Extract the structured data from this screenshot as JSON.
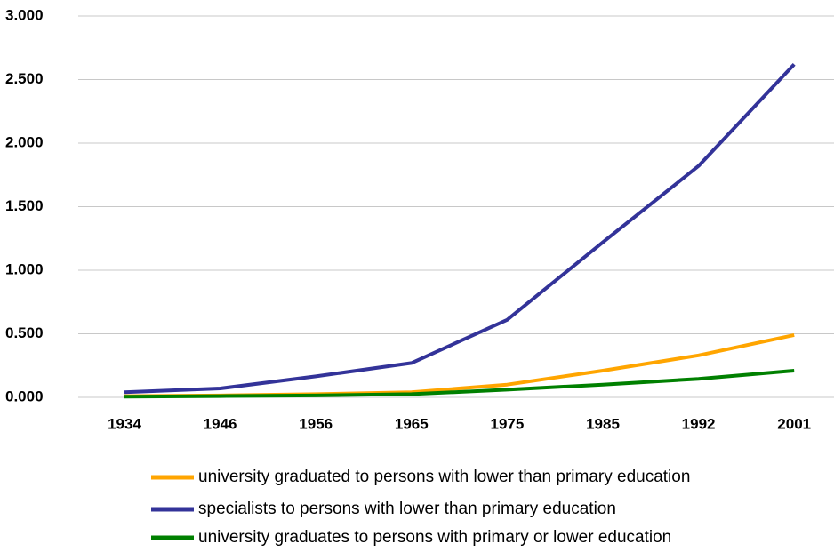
{
  "chart_data": {
    "type": "line",
    "categories": [
      "1934",
      "1946",
      "1956",
      "1965",
      "1975",
      "1985",
      "1992",
      "2001"
    ],
    "series": [
      {
        "name": "university graduated to persons with lower than primary education",
        "color": "#ffa500",
        "values": [
          0.01,
          0.015,
          0.025,
          0.04,
          0.1,
          0.21,
          0.33,
          0.49
        ]
      },
      {
        "name": "specialists to persons with lower than primary education",
        "color": "#333399",
        "values": [
          0.04,
          0.07,
          0.165,
          0.27,
          0.61,
          1.22,
          1.82,
          2.62
        ]
      },
      {
        "name": "university graduates to persons with primary or lower education",
        "color": "#008000",
        "values": [
          0.005,
          0.01,
          0.015,
          0.025,
          0.06,
          0.1,
          0.145,
          0.21
        ]
      }
    ],
    "ylim": [
      0,
      3
    ],
    "yticks": [
      {
        "value": 0,
        "label": "0.000"
      },
      {
        "value": 0.5,
        "label": "0.500"
      },
      {
        "value": 1,
        "label": "1.000"
      },
      {
        "value": 1.5,
        "label": "1.500"
      },
      {
        "value": 2,
        "label": "2.000"
      },
      {
        "value": 2.5,
        "label": "2.500"
      },
      {
        "value": 3,
        "label": "3.000"
      }
    ],
    "grid": true,
    "legend": "bottom"
  }
}
